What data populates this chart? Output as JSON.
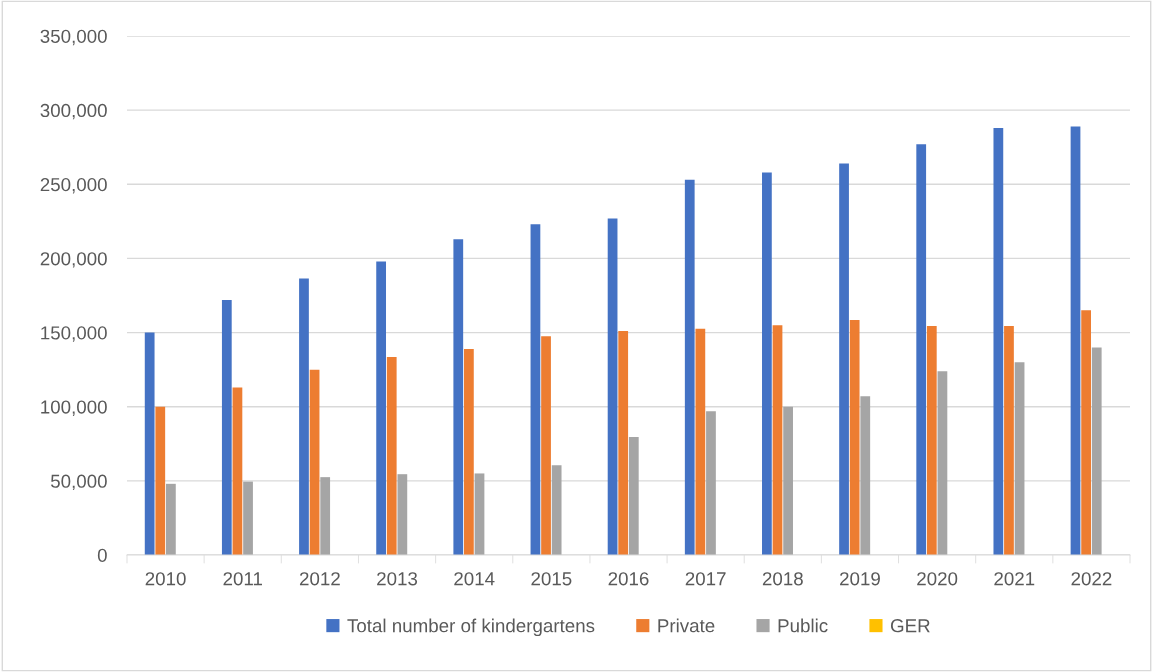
{
  "chart_data": {
    "type": "bar",
    "categories": [
      "2010",
      "2011",
      "2012",
      "2013",
      "2014",
      "2015",
      "2016",
      "2017",
      "2018",
      "2019",
      "2020",
      "2021",
      "2022"
    ],
    "series": [
      {
        "name": "Total number of kindergartens",
        "color": "#4472c4",
        "values": [
          150000,
          172000,
          186500,
          198000,
          213000,
          223000,
          227000,
          253000,
          258000,
          264000,
          277000,
          288000,
          289000
        ]
      },
      {
        "name": "Private",
        "color": "#ed7d31",
        "values": [
          100000,
          113000,
          125000,
          133500,
          139000,
          147500,
          151000,
          152500,
          155000,
          158500,
          154500,
          154500,
          165000
        ]
      },
      {
        "name": "Public",
        "color": "#a5a5a5",
        "values": [
          48000,
          49500,
          52500,
          54500,
          55000,
          60500,
          79500,
          97000,
          100000,
          107000,
          124000,
          130000,
          140000
        ]
      },
      {
        "name": "GER",
        "color": "#ffc000",
        "values": [
          0,
          0,
          0,
          0,
          0,
          0,
          0,
          0,
          0,
          0,
          0,
          0,
          0
        ]
      }
    ],
    "ylim": [
      0,
      350000
    ],
    "yticks": [
      {
        "value": 0,
        "label": "0"
      },
      {
        "value": 50000,
        "label": "50,000"
      },
      {
        "value": 100000,
        "label": "100,000"
      },
      {
        "value": 150000,
        "label": "150,000"
      },
      {
        "value": 200000,
        "label": "200,000"
      },
      {
        "value": 250000,
        "label": "250,000"
      },
      {
        "value": 300000,
        "label": "300,000"
      },
      {
        "value": 350000,
        "label": "350,000"
      }
    ],
    "grid": "y",
    "legend": "bottom"
  }
}
